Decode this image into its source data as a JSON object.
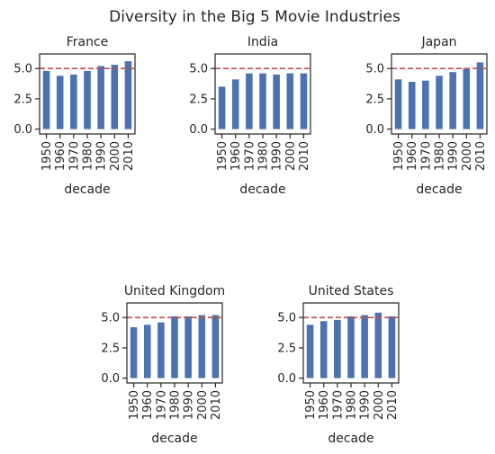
{
  "figure": {
    "title": "Diversity in the Big 5 Movie Industries"
  },
  "style": {
    "bar_color": "#4c72b0",
    "reference_line_color": "#c44e52",
    "axis_color": "#262626"
  },
  "chart_data": [
    {
      "type": "bar",
      "title": "France",
      "xlabel": "decade",
      "ylabel": "",
      "categories": [
        "1950",
        "1960",
        "1970",
        "1980",
        "1990",
        "2000",
        "2010"
      ],
      "values": [
        4.8,
        4.4,
        4.5,
        4.8,
        5.2,
        5.3,
        5.6
      ],
      "ylim": [
        -0.4,
        6.2
      ],
      "yticks": [
        0.0,
        2.5,
        5.0
      ],
      "ytick_labels": [
        "0.0",
        "2.5",
        "5.0"
      ],
      "reference_line": {
        "y": 5.0,
        "style": "dashed"
      },
      "grid": false
    },
    {
      "type": "bar",
      "title": "India",
      "xlabel": "decade",
      "ylabel": "",
      "categories": [
        "1950",
        "1960",
        "1970",
        "1980",
        "1990",
        "2000",
        "2010"
      ],
      "values": [
        3.5,
        4.1,
        4.6,
        4.6,
        4.5,
        4.6,
        4.6
      ],
      "ylim": [
        -0.4,
        6.2
      ],
      "yticks": [
        0.0,
        2.5,
        5.0
      ],
      "ytick_labels": [
        "0.0",
        "2.5",
        "5.0"
      ],
      "reference_line": {
        "y": 5.0,
        "style": "dashed"
      },
      "grid": false
    },
    {
      "type": "bar",
      "title": "Japan",
      "xlabel": "decade",
      "ylabel": "",
      "categories": [
        "1950",
        "1960",
        "1970",
        "1980",
        "1990",
        "2000",
        "2010"
      ],
      "values": [
        4.1,
        3.9,
        4.0,
        4.4,
        4.7,
        5.0,
        5.5
      ],
      "ylim": [
        -0.4,
        6.2
      ],
      "yticks": [
        0.0,
        2.5,
        5.0
      ],
      "ytick_labels": [
        "0.0",
        "2.5",
        "5.0"
      ],
      "reference_line": {
        "y": 5.0,
        "style": "dashed"
      },
      "grid": false
    },
    {
      "type": "bar",
      "title": "United Kingdom",
      "xlabel": "decade",
      "ylabel": "",
      "categories": [
        "1950",
        "1960",
        "1970",
        "1980",
        "1990",
        "2000",
        "2010"
      ],
      "values": [
        4.2,
        4.4,
        4.6,
        5.1,
        5.1,
        5.2,
        5.2
      ],
      "ylim": [
        -0.4,
        6.2
      ],
      "yticks": [
        0.0,
        2.5,
        5.0
      ],
      "ytick_labels": [
        "0.0",
        "2.5",
        "5.0"
      ],
      "reference_line": {
        "y": 5.0,
        "style": "dashed"
      },
      "grid": false
    },
    {
      "type": "bar",
      "title": "United States",
      "xlabel": "decade",
      "ylabel": "",
      "categories": [
        "1950",
        "1960",
        "1970",
        "1980",
        "1990",
        "2000",
        "2010"
      ],
      "values": [
        4.4,
        4.7,
        4.8,
        5.1,
        5.2,
        5.4,
        5.1
      ],
      "ylim": [
        -0.4,
        6.2
      ],
      "yticks": [
        0.0,
        2.5,
        5.0
      ],
      "ytick_labels": [
        "0.0",
        "2.5",
        "5.0"
      ],
      "reference_line": {
        "y": 5.0,
        "style": "dashed"
      },
      "grid": false
    }
  ]
}
